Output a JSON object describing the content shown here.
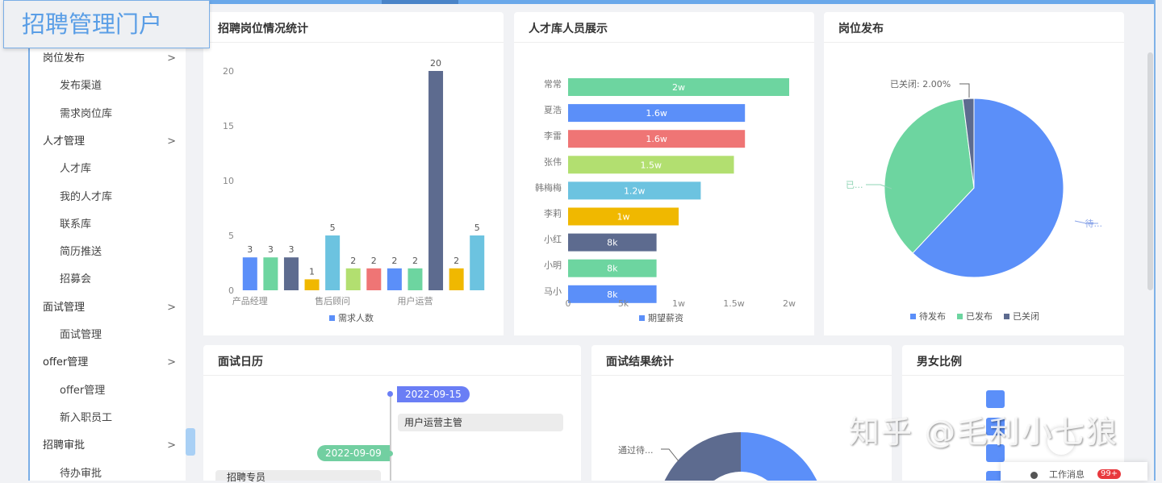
{
  "app": {
    "title": "招聘管理门户"
  },
  "sidebar": {
    "items": [
      {
        "label": "岗位发布",
        "children": [
          "发布渠道",
          "需求岗位库"
        ]
      },
      {
        "label": "人才管理",
        "children": [
          "人才库",
          "我的人才库",
          "联系库",
          "简历推送",
          "招募会"
        ]
      },
      {
        "label": "面试管理",
        "children": [
          "面试管理"
        ]
      },
      {
        "label": "offer管理",
        "children": [
          "offer管理",
          "新入职员工"
        ]
      },
      {
        "label": "招聘审批",
        "children": [
          "待办审批"
        ]
      }
    ],
    "chevron": ">"
  },
  "cards": {
    "job_stats": "招聘岗位情况统计",
    "talent": "人才库人员展示",
    "job_publish": "岗位发布",
    "calendar": "面试日历",
    "interview_result": "面试结果统计",
    "gender": "男女比例"
  },
  "colors": {
    "blue": "#5b8ff9",
    "green": "#6dd5a0",
    "slate": "#5d6b8f",
    "yellow": "#f0b800",
    "cyan": "#6cc3e0",
    "lime": "#b2df70",
    "red": "#ef7575",
    "accent": "#6aa8ea"
  },
  "chart_data": [
    {
      "type": "bar",
      "title": "招聘岗位情况统计",
      "categories": [
        "产品经理",
        "",
        "",
        "",
        "售后顾问",
        "",
        "",
        "",
        "用户运营",
        "",
        "",
        ""
      ],
      "series": [
        {
          "name": "需求人数",
          "values": [
            3,
            3,
            3,
            1,
            5,
            2,
            2,
            2,
            2,
            20,
            2,
            5
          ]
        }
      ],
      "ylim": [
        0,
        20
      ],
      "yticks": [
        0,
        5,
        10,
        15,
        20
      ],
      "legend": "bottom"
    },
    {
      "type": "bar",
      "orientation": "horizontal",
      "title": "人才库人员展示",
      "categories": [
        "常常",
        "夏浩",
        "李雷",
        "张伟",
        "韩梅梅",
        "李莉",
        "小红",
        "小明",
        "马小"
      ],
      "series": [
        {
          "name": "期望薪资",
          "values": [
            20000,
            16000,
            16000,
            15000,
            12000,
            10000,
            8000,
            8000,
            8000
          ],
          "labels": [
            "2w",
            "1.6w",
            "1.6w",
            "1.5w",
            "1.2w",
            "1w",
            "8k",
            "8k",
            "8k"
          ]
        }
      ],
      "xlim": [
        0,
        20000
      ],
      "xticks": [
        "0",
        "5k",
        "1w",
        "1.5w",
        "2w"
      ],
      "legend": "bottom"
    },
    {
      "type": "pie",
      "title": "岗位发布",
      "slices": [
        {
          "name": "待发布",
          "value": 62,
          "label": "待..."
        },
        {
          "name": "已发布",
          "value": 36,
          "label": "已..."
        },
        {
          "name": "已关闭",
          "value": 2,
          "label": "已关闭: 2.00%"
        }
      ],
      "legend": "bottom"
    },
    {
      "type": "pie",
      "title": "面试结果统计",
      "donut": true,
      "slices": [
        {
          "name": "通过待...",
          "label": "通过待..."
        }
      ]
    }
  ],
  "calendar": {
    "events": [
      {
        "date": "2022-09-15",
        "text": "用户运营主管"
      },
      {
        "date": "2022-09-09",
        "text": "招聘专员"
      }
    ]
  },
  "messages": {
    "label": "工作消息",
    "badge": "99+"
  },
  "watermark": "知乎 @毛利小七狼"
}
